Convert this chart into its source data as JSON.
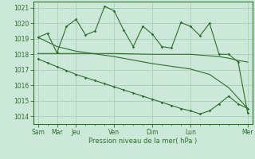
{
  "bg_color": "#cce8d8",
  "grid_color": "#aaccbb",
  "line_color": "#2d6e2d",
  "xlabel": "Pression niveau de la mer( hPa )",
  "ylim": [
    1013.5,
    1021.4
  ],
  "yticks": [
    1014,
    1015,
    1016,
    1017,
    1018,
    1019,
    1020,
    1021
  ],
  "xtick_major_positions": [
    0,
    2,
    4,
    8,
    12,
    16,
    22
  ],
  "xtick_labels_map": {
    "0": "Sam",
    "2": "Mar",
    "4": "Jeu",
    "8": "Ven",
    "12": "Dim",
    "16": "Lun",
    "22": "Mer"
  },
  "n_points": 23,
  "series1_x": [
    0,
    1,
    2,
    3,
    4,
    5,
    6,
    7,
    8,
    9,
    10,
    11,
    12,
    13,
    14,
    15,
    16,
    17,
    18,
    19,
    20,
    21,
    22
  ],
  "series1_y": [
    1019.1,
    1019.35,
    1018.1,
    1019.8,
    1020.25,
    1019.25,
    1019.5,
    1021.1,
    1020.8,
    1019.55,
    1018.5,
    1019.8,
    1019.3,
    1018.5,
    1018.4,
    1020.05,
    1019.8,
    1019.2,
    1020.0,
    1018.0,
    1018.0,
    1017.5,
    1014.2
  ],
  "series2_x": [
    0,
    1,
    2,
    4,
    8,
    12,
    16,
    17,
    18,
    19,
    20,
    21,
    22
  ],
  "series2_y": [
    1018.05,
    1018.05,
    1018.05,
    1018.05,
    1018.05,
    1018.0,
    1018.0,
    1017.95,
    1017.9,
    1017.85,
    1017.75,
    1017.6,
    1017.5
  ],
  "series3_x": [
    0,
    2,
    4,
    8,
    12,
    16,
    18,
    20,
    22
  ],
  "series3_y": [
    1019.1,
    1018.5,
    1018.2,
    1017.85,
    1017.4,
    1017.05,
    1016.7,
    1015.85,
    1014.5
  ],
  "series4_x": [
    0,
    1,
    2,
    3,
    4,
    5,
    6,
    7,
    8,
    9,
    10,
    11,
    12,
    13,
    14,
    15,
    16,
    17,
    18,
    19,
    20,
    21,
    22
  ],
  "series4_y": [
    1017.7,
    1017.45,
    1017.2,
    1016.95,
    1016.7,
    1016.5,
    1016.3,
    1016.1,
    1015.9,
    1015.7,
    1015.5,
    1015.3,
    1015.1,
    1014.9,
    1014.7,
    1014.5,
    1014.35,
    1014.15,
    1014.35,
    1014.8,
    1015.3,
    1014.8,
    1014.5
  ]
}
